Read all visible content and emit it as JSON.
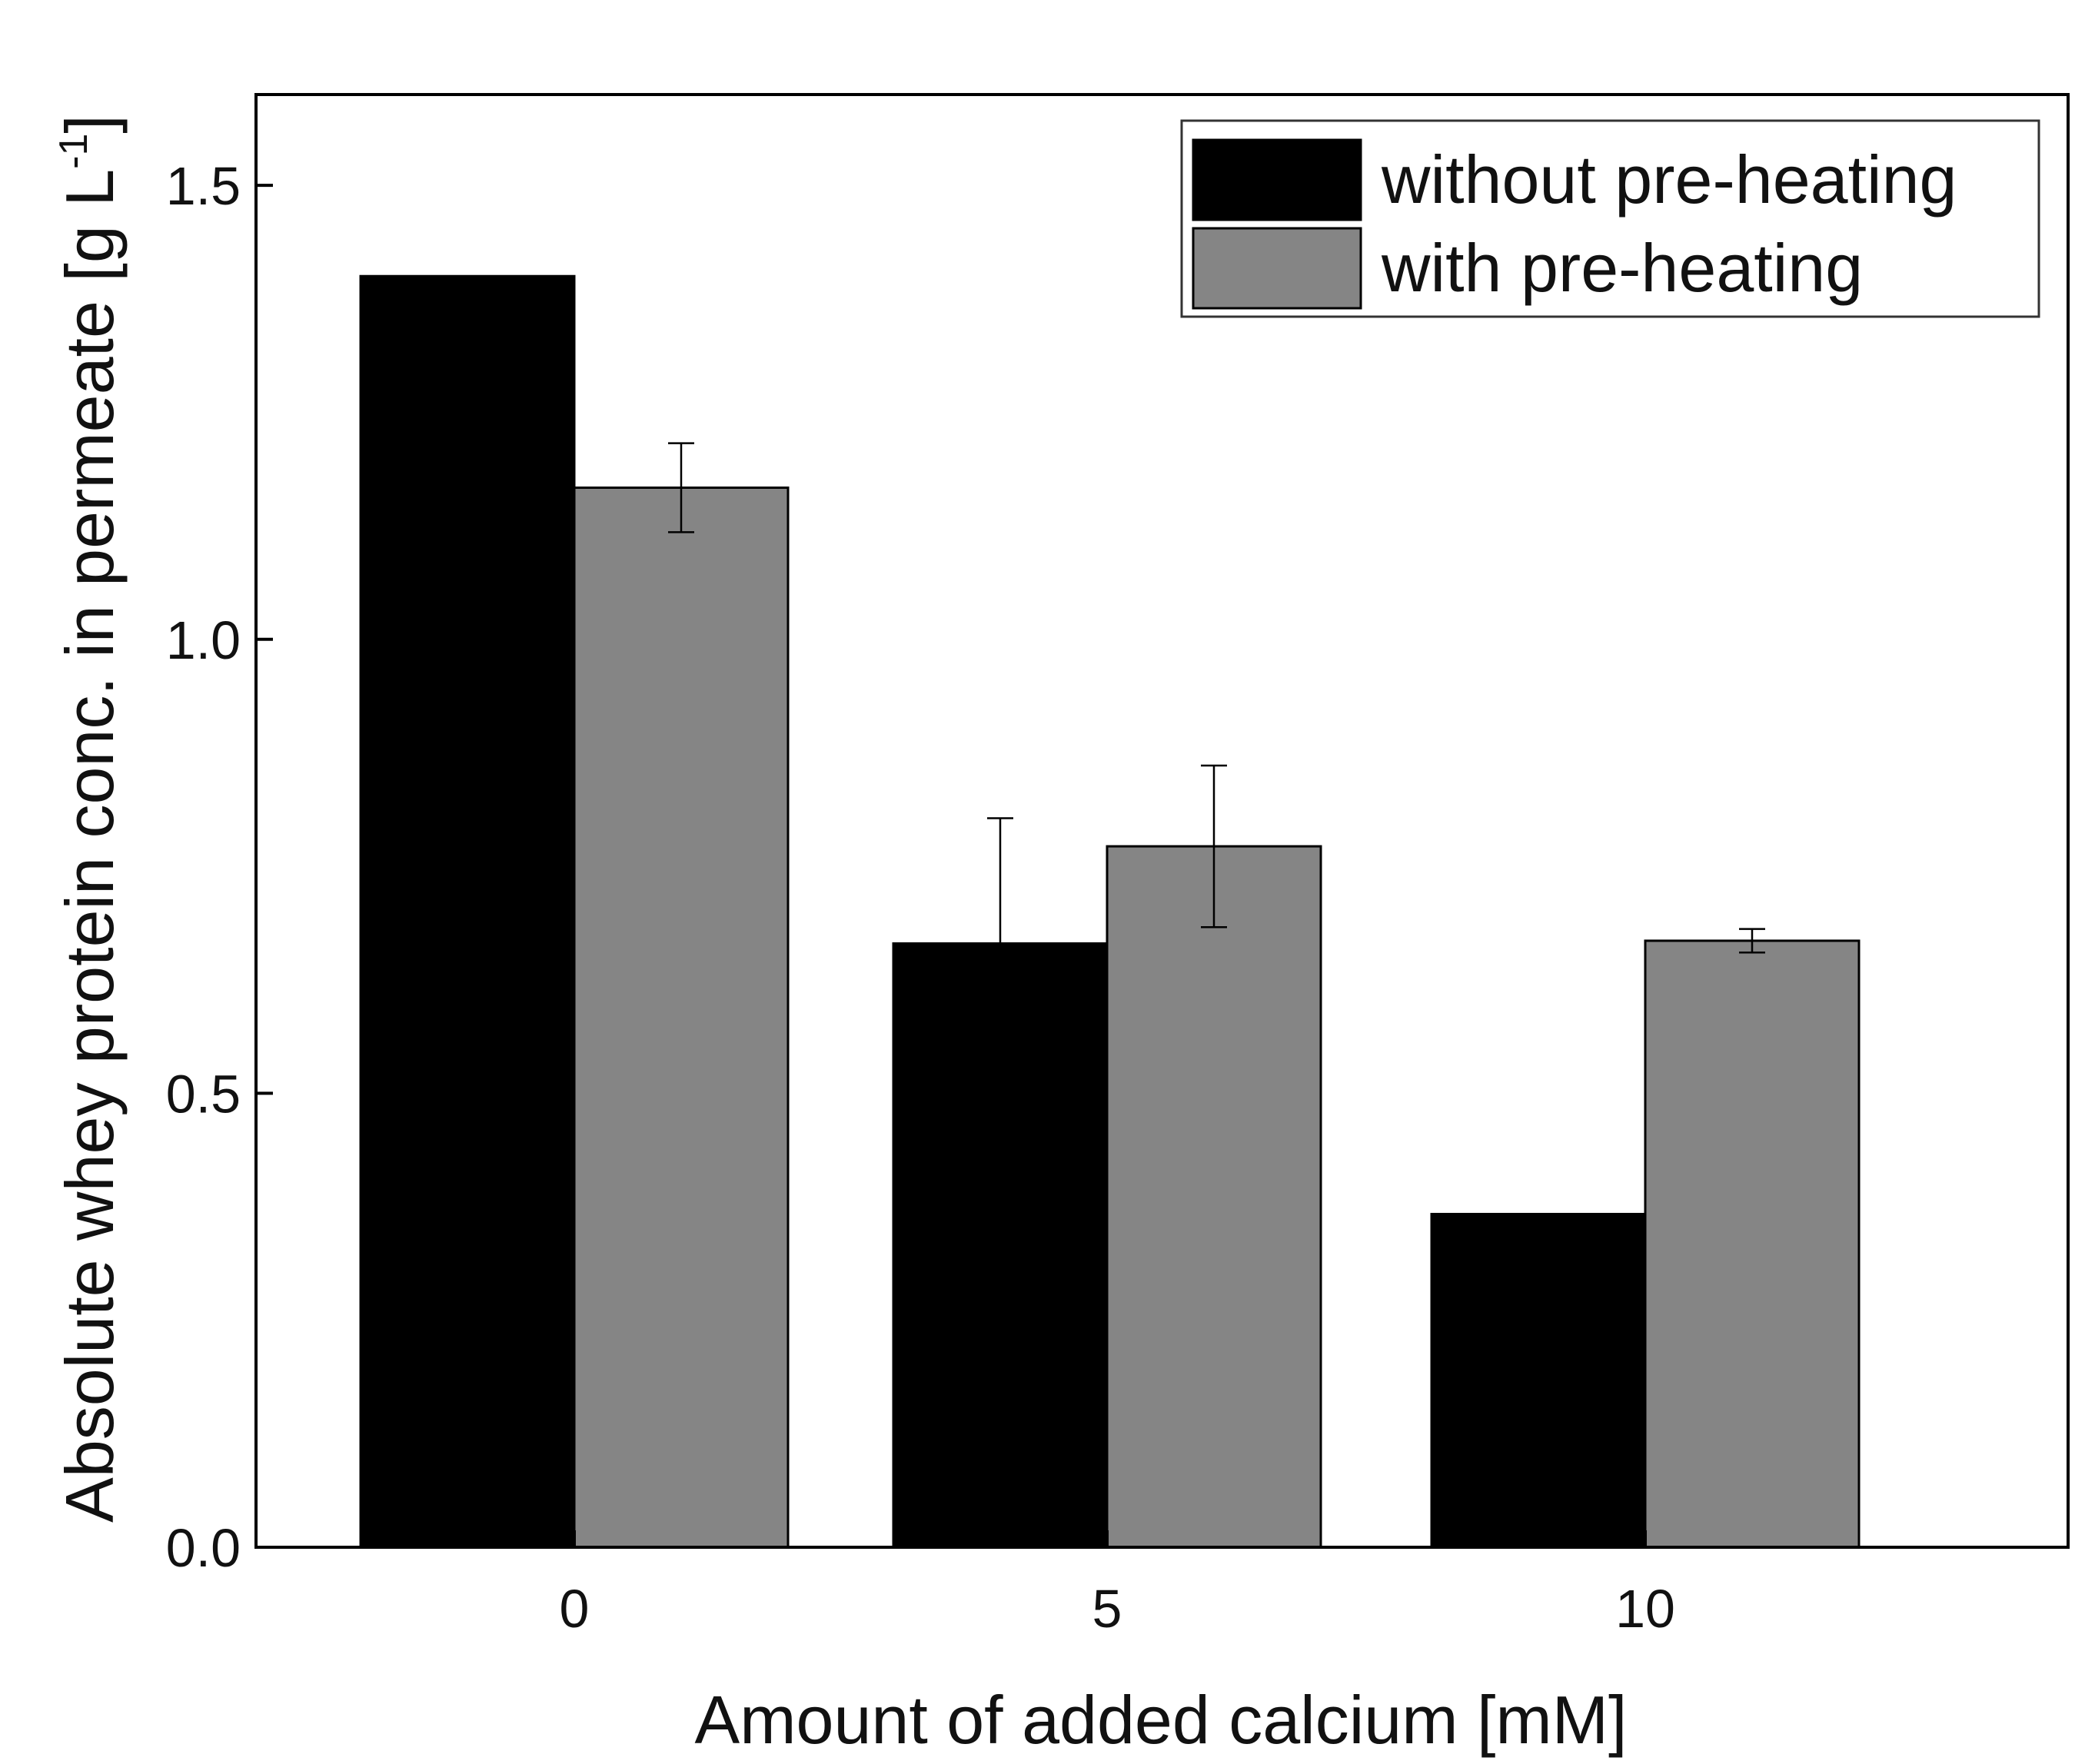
{
  "chart_data": {
    "type": "bar",
    "title": "",
    "xlabel": "Amount of added calcium [mM]",
    "ylabel": {
      "text": "Absolute whey protein conc. in permeate [g L",
      "superscript": "-1",
      "suffix": "]"
    },
    "categories": [
      "0",
      "5",
      "10"
    ],
    "ylim": [
      0,
      1.6
    ],
    "yticks": [
      0.0,
      0.5,
      1.0,
      1.5
    ],
    "ytick_labels": [
      "0.0",
      "0.5",
      "1.0",
      "1.5"
    ],
    "grid": false,
    "legend_position": "top-right",
    "series": [
      {
        "name": "without pre-heating",
        "color": "#000000",
        "values": [
          1.4,
          0.665,
          0.367
        ],
        "errors": [
          null,
          0.138,
          null
        ]
      },
      {
        "name": "with pre-heating",
        "color": "#858585",
        "values": [
          1.167,
          0.772,
          0.668
        ],
        "errors": [
          0.049,
          0.089,
          0.013
        ]
      }
    ]
  }
}
